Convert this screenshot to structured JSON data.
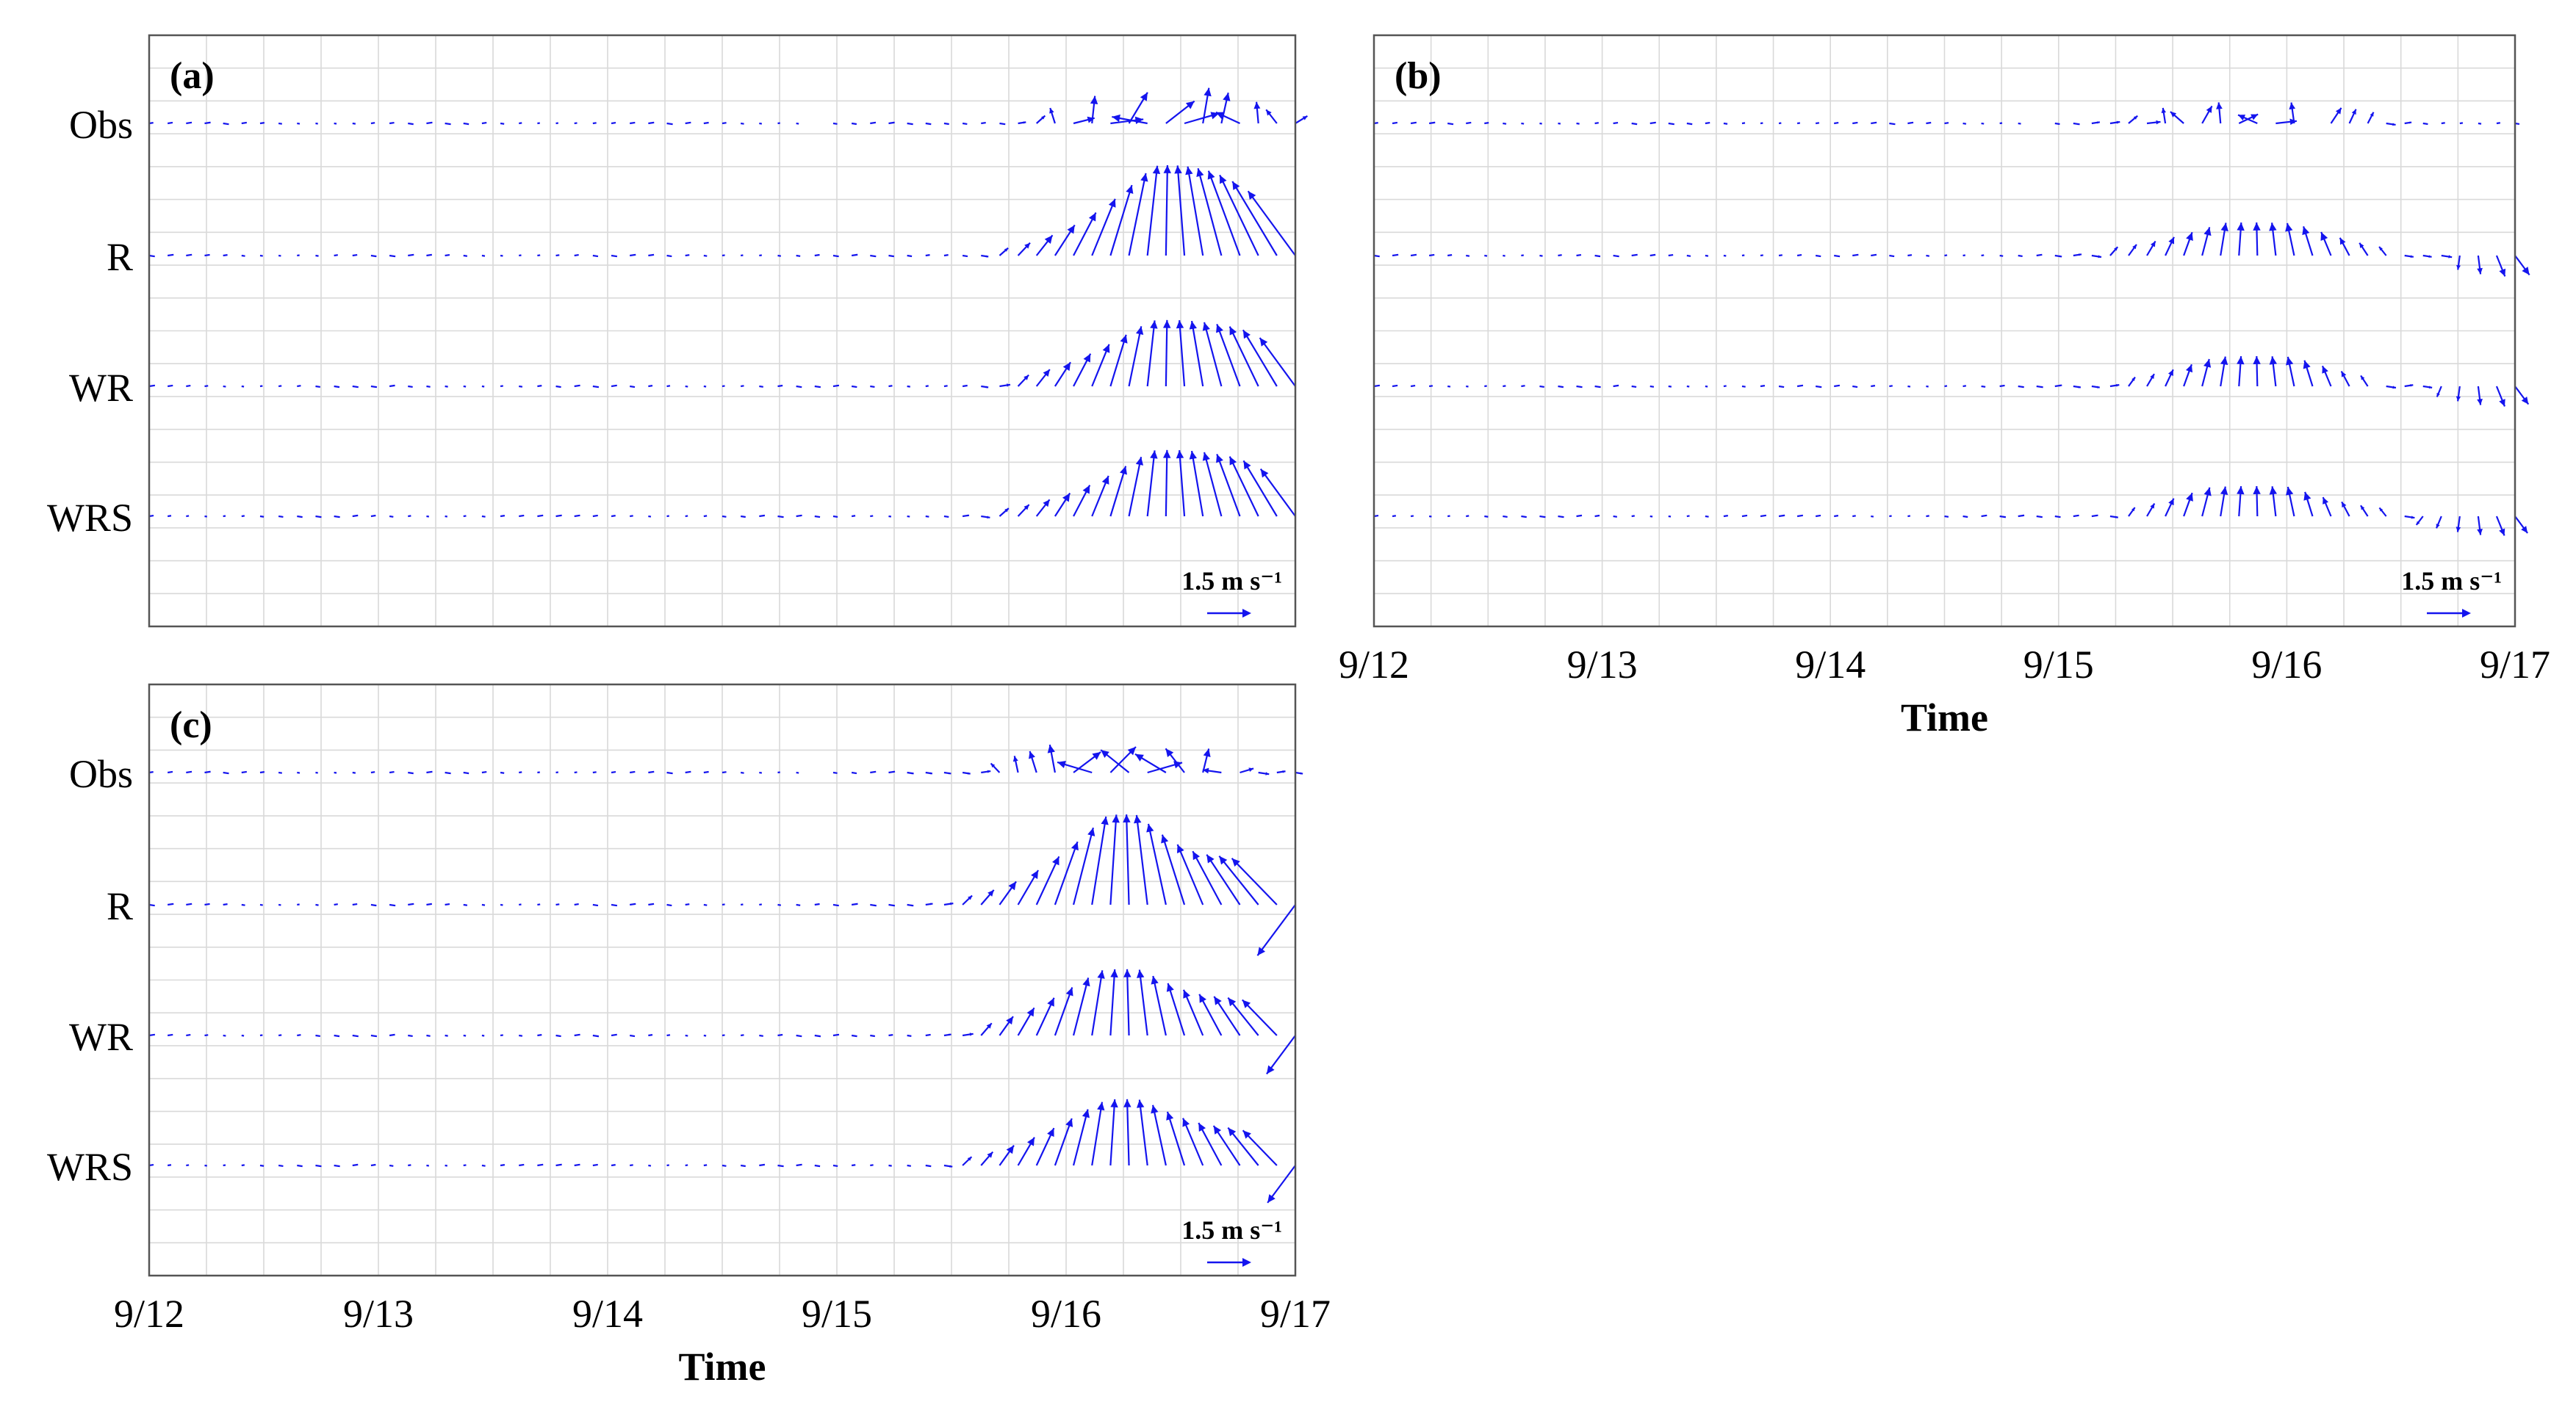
{
  "figure": {
    "time_axis": {
      "xlabel": "Time",
      "tick_labels": [
        "9/12",
        "9/13",
        "9/14",
        "9/15",
        "9/16",
        "9/17"
      ],
      "xlim_days": [
        0,
        5
      ]
    },
    "scale_label": "1.5 m s⁻¹",
    "scale_speed": 1.5,
    "vector_color": "#1414ee",
    "grid_color": "#d9d9d9"
  },
  "chart_data": [
    {
      "type": "quiver-timeseries",
      "panel": "(a)",
      "units": "m s^-1",
      "xlabel": "",
      "tick_labels_shown": false,
      "rows": [
        {
          "label": "Obs",
          "peak_day": 4.45,
          "peak_speed": 0.6,
          "has_gaps": true
        },
        {
          "label": "R",
          "peak_day": 4.45,
          "peak_speed": 1.5,
          "has_gaps": false
        },
        {
          "label": "WR",
          "peak_day": 4.45,
          "peak_speed": 1.1,
          "has_gaps": false
        },
        {
          "label": "WRS",
          "peak_day": 4.45,
          "peak_speed": 1.1,
          "has_gaps": false
        }
      ]
    },
    {
      "type": "quiver-timeseries",
      "panel": "(b)",
      "units": "m s^-1",
      "xlabel": "Time",
      "tick_labels_shown": true,
      "rows": [
        {
          "label": "",
          "peak_day": 3.85,
          "peak_speed": 0.35,
          "has_gaps": true
        },
        {
          "label": "",
          "peak_day": 3.85,
          "peak_speed": 0.55,
          "has_gaps": false
        },
        {
          "label": "",
          "peak_day": 3.85,
          "peak_speed": 0.5,
          "has_gaps": false
        },
        {
          "label": "",
          "peak_day": 3.85,
          "peak_speed": 0.5,
          "has_gaps": false
        }
      ]
    },
    {
      "type": "quiver-timeseries",
      "panel": "(c)",
      "units": "m s^-1",
      "xlabel": "Time",
      "tick_labels_shown": true,
      "rows": [
        {
          "label": "Obs",
          "peak_day": 4.25,
          "peak_speed": 0.6,
          "has_gaps": true
        },
        {
          "label": "R",
          "peak_day": 4.25,
          "peak_speed": 1.5,
          "has_gaps": false
        },
        {
          "label": "WR",
          "peak_day": 4.25,
          "peak_speed": 1.1,
          "has_gaps": false
        },
        {
          "label": "WRS",
          "peak_day": 4.25,
          "peak_speed": 1.1,
          "has_gaps": false
        }
      ]
    }
  ]
}
